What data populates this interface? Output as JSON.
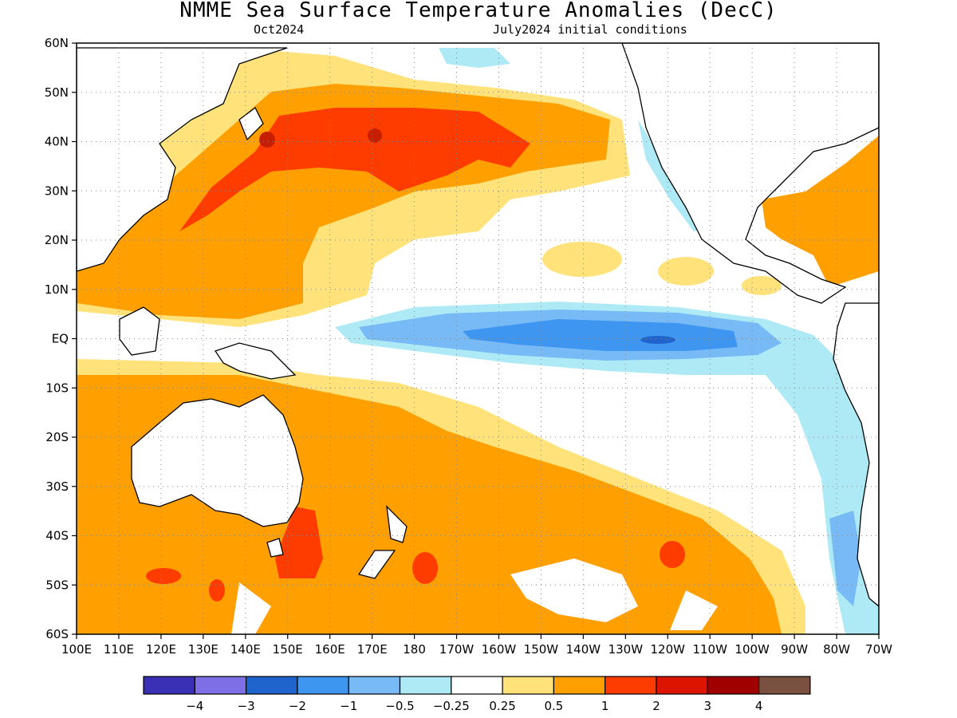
{
  "title": "NMME Sea Surface Temperature Anomalies (DecC)",
  "subtitle_left": "Oct2024",
  "subtitle_right": "July2024 initial conditions",
  "lat_labels": [
    "60N",
    "50N",
    "40N",
    "30N",
    "20N",
    "10N",
    "EQ",
    "10S",
    "20S",
    "30S",
    "40S",
    "50S",
    "60S"
  ],
  "lon_labels": [
    "100E",
    "110E",
    "120E",
    "130E",
    "140E",
    "150E",
    "160E",
    "170E",
    "180",
    "170W",
    "160W",
    "150W",
    "140W",
    "130W",
    "120W",
    "110W",
    "100W",
    "90W",
    "80W",
    "70W"
  ],
  "colorbar": {
    "colors": [
      "#3a2fb5",
      "#7e6fe6",
      "#1e64cc",
      "#3e96f0",
      "#78baf6",
      "#aeeaf6",
      "#ffffff",
      "#ffe27a",
      "#ffa000",
      "#ff3c00",
      "#dc1400",
      "#a00000",
      "#7a5040"
    ],
    "labels": [
      "−4",
      "−3",
      "−2",
      "−1",
      "−0.5",
      "−0.25",
      "0.25",
      "0.5",
      "1",
      "2",
      "3",
      "4"
    ]
  },
  "palette": {
    "land": "#ffffff",
    "ocean_neutral": "#ffffff",
    "light_orange": "#ffe27a",
    "orange": "#ffa000",
    "red_orange": "#ff3c00",
    "dark_red": "#c81e00",
    "light_blue": "#aeeaf6",
    "mid_blue": "#78baf6",
    "blue": "#3e96f0",
    "dark_blue": "#1e64cc"
  }
}
